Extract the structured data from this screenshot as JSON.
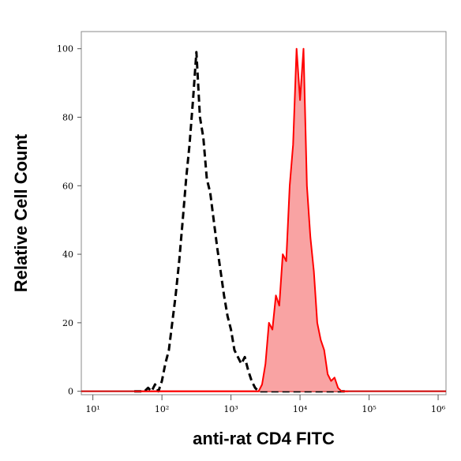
{
  "chart_data": {
    "type": "histogram-overlay",
    "xlabel": "anti-rat CD4 FITC",
    "ylabel": "Relative Cell Count",
    "xscale": "log",
    "xlim": [
      6.8,
      1300000
    ],
    "xticks": [
      {
        "value": 10,
        "label": "10¹"
      },
      {
        "value": 100,
        "label": "10²"
      },
      {
        "value": 1000,
        "label": "10³"
      },
      {
        "value": 10000,
        "label": "10⁴"
      },
      {
        "value": 100000,
        "label": "10⁵"
      },
      {
        "value": 1000000,
        "label": "10⁶"
      }
    ],
    "ylim": [
      -1,
      105
    ],
    "yticks": [
      0,
      20,
      40,
      60,
      80,
      100
    ],
    "x": [
      39.8,
      44.7,
      50.1,
      56.2,
      63.1,
      70.8,
      79.4,
      89.1,
      100,
      112,
      126,
      141,
      158,
      178,
      200,
      224,
      251,
      282,
      316,
      355,
      398,
      447,
      501,
      562,
      631,
      708,
      794,
      891,
      1000,
      1122,
      1259,
      1413,
      1585,
      1778,
      1995,
      2239,
      2512,
      2818,
      3162,
      3548,
      3981,
      4467,
      5012,
      5623,
      6310,
      7079,
      7943,
      8913,
      10000,
      11220,
      12589,
      14125,
      15849,
      17783,
      19953,
      22387,
      25119,
      28184,
      31623,
      35481,
      39811,
      44668,
      50119
    ],
    "series": [
      {
        "color": "#000000",
        "style": "dashed",
        "filled": false,
        "values": [
          0,
          0,
          0,
          0,
          1,
          0,
          2,
          0,
          3,
          8,
          12,
          20,
          28,
          38,
          50,
          62,
          72,
          85,
          99,
          80,
          74,
          62,
          58,
          50,
          42,
          35,
          28,
          22,
          18,
          12,
          10,
          8,
          10,
          6,
          3,
          1,
          0,
          0,
          0,
          0,
          0,
          0,
          0,
          0,
          0,
          0,
          0,
          0,
          0,
          0,
          0,
          0,
          0,
          0,
          0,
          0,
          0,
          0,
          0,
          0,
          0,
          0,
          0
        ]
      },
      {
        "color": "#ff0000",
        "fill": "#f9a3a3",
        "style": "solid",
        "filled": true,
        "values": [
          0,
          0,
          0,
          0,
          0,
          0,
          0,
          0,
          0,
          0,
          0,
          0,
          0,
          0,
          0,
          0,
          0,
          0,
          0,
          0,
          0,
          0,
          0,
          0,
          0,
          0,
          0,
          0,
          0,
          0,
          0,
          0,
          0,
          0,
          0,
          0,
          0,
          2,
          8,
          20,
          18,
          28,
          25,
          40,
          38,
          60,
          72,
          100,
          85,
          100,
          60,
          45,
          35,
          20,
          15,
          12,
          5,
          3,
          4,
          1,
          0,
          0,
          0
        ]
      }
    ]
  }
}
